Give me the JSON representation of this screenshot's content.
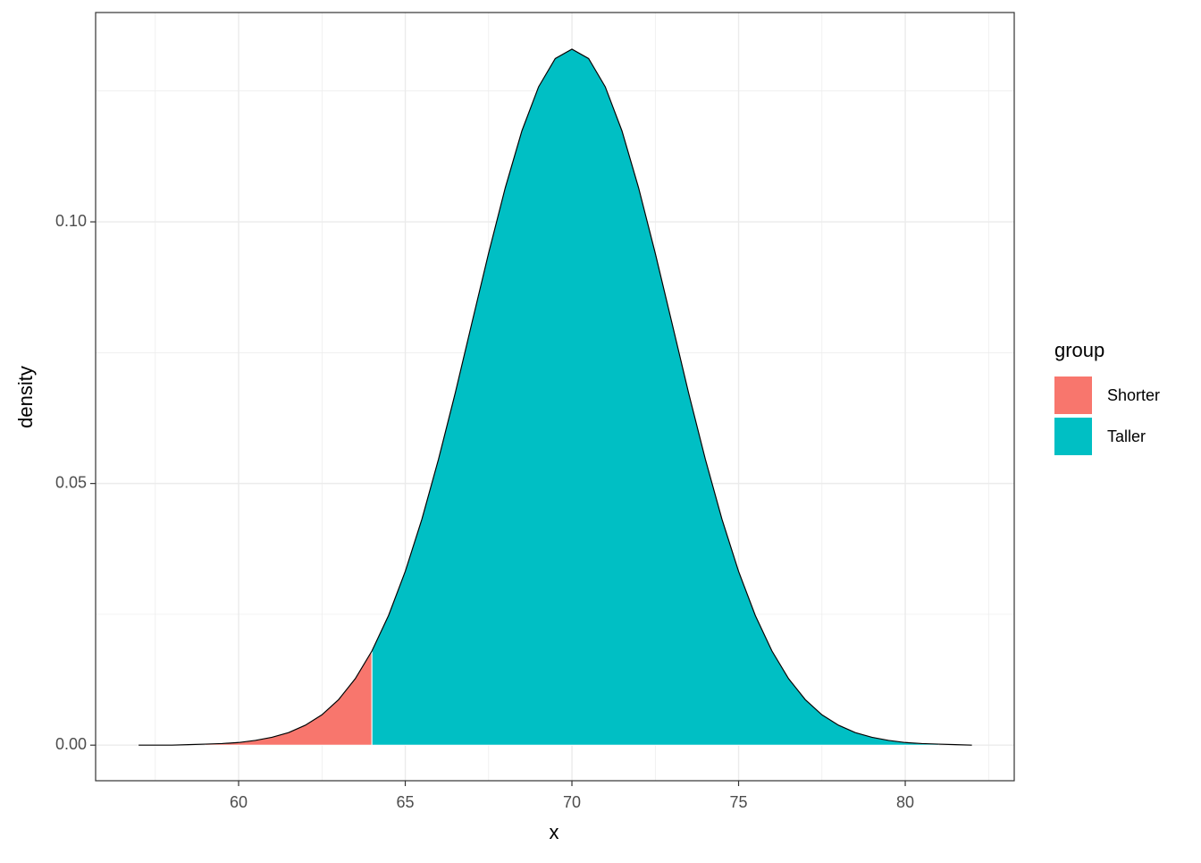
{
  "chart_data": {
    "type": "area",
    "xlabel": "x",
    "ylabel": "density",
    "xlim": [
      55.71,
      83.27
    ],
    "ylim": [
      -0.0068,
      0.14
    ],
    "xticks": [
      60,
      65,
      70,
      75,
      80
    ],
    "yticks": [
      {
        "value": 0,
        "label": "0.00"
      },
      {
        "value": 0.05,
        "label": "0.05"
      },
      {
        "value": 0.1,
        "label": "0.10"
      }
    ],
    "x_minor_grid": [
      57.5,
      62.5,
      67.5,
      72.5,
      77.5,
      82.5
    ],
    "y_minor_grid": [
      0.025,
      0.075,
      0.125
    ],
    "grid": true,
    "legend_title": "group",
    "legend_position": "right",
    "line": {
      "color": "#000000",
      "x": [
        57,
        57.5,
        58,
        58.5,
        59,
        59.5,
        60,
        60.5,
        61,
        61.5,
        62,
        62.5,
        63,
        63.5,
        64,
        64.5,
        65,
        65.5,
        66,
        66.5,
        67,
        67.5,
        68,
        68.5,
        69,
        69.5,
        70,
        70.5,
        71,
        71.5,
        72,
        72.5,
        73,
        73.5,
        74,
        74.5,
        75,
        75.5,
        76,
        76.5,
        77,
        77.5,
        78,
        78.5,
        79,
        79.5,
        80,
        80.5,
        81,
        81.5,
        82
      ],
      "values": [
        0,
        0,
        0,
        0.0001,
        0.0002,
        0.0003,
        0.0005,
        0.0009,
        0.0015,
        0.0024,
        0.0038,
        0.0058,
        0.0087,
        0.0127,
        0.018,
        0.0248,
        0.0332,
        0.0432,
        0.0547,
        0.0673,
        0.0807,
        0.094,
        0.1065,
        0.1174,
        0.1258,
        0.1312,
        0.133,
        0.1312,
        0.1258,
        0.1174,
        0.1065,
        0.094,
        0.0807,
        0.0673,
        0.0547,
        0.0432,
        0.0332,
        0.0248,
        0.018,
        0.0127,
        0.0087,
        0.0058,
        0.0038,
        0.0024,
        0.0015,
        0.0009,
        0.0005,
        0.0003,
        0.0002,
        0.0001,
        0
      ]
    },
    "series": [
      {
        "name": "Shorter",
        "color": "#F8766D",
        "x": [
          59,
          59.5,
          60,
          60.5,
          61,
          61.5,
          62,
          62.5,
          63,
          63.5,
          64
        ],
        "values": [
          0.0002,
          0.0003,
          0.0005,
          0.0009,
          0.0015,
          0.0024,
          0.0038,
          0.0058,
          0.0087,
          0.0127,
          0.018
        ]
      },
      {
        "name": "Taller",
        "color": "#00BFC4",
        "x": [
          64,
          64.5,
          65,
          65.5,
          66,
          66.5,
          67,
          67.5,
          68,
          68.5,
          69,
          69.5,
          70,
          70.5,
          71,
          71.5,
          72,
          72.5,
          73,
          73.5,
          74,
          74.5,
          75,
          75.5,
          76,
          76.5,
          77,
          77.5,
          78,
          78.5,
          79,
          79.5,
          80,
          80.5,
          81
        ],
        "values": [
          0.018,
          0.0248,
          0.0332,
          0.0432,
          0.0547,
          0.0673,
          0.0807,
          0.094,
          0.1065,
          0.1174,
          0.1258,
          0.1312,
          0.133,
          0.1312,
          0.1258,
          0.1174,
          0.1065,
          0.094,
          0.0807,
          0.0673,
          0.0547,
          0.0432,
          0.0332,
          0.0248,
          0.018,
          0.0127,
          0.0087,
          0.0058,
          0.0038,
          0.0024,
          0.0015,
          0.0009,
          0.0005,
          0.0003,
          0.0002
        ]
      }
    ]
  }
}
